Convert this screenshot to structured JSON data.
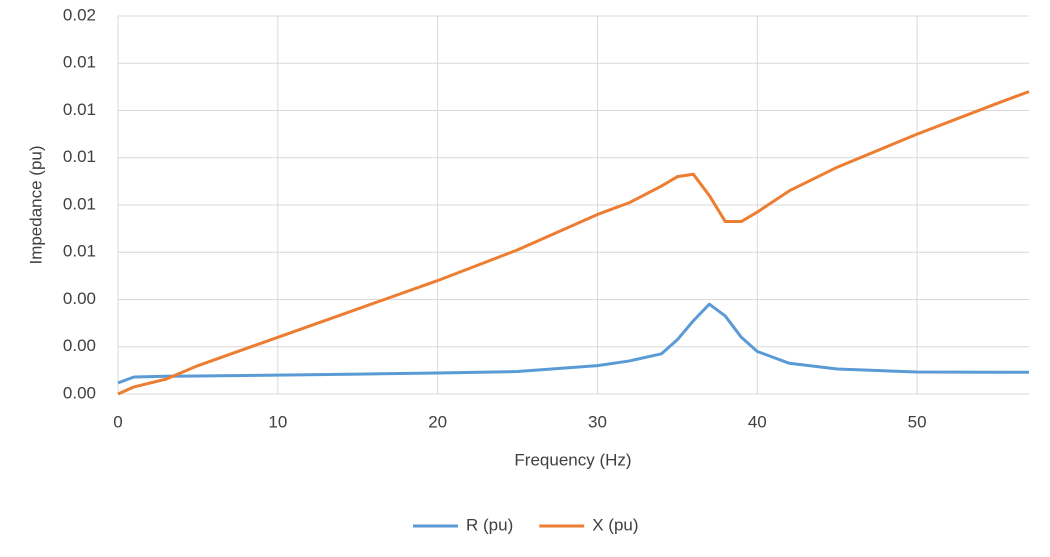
{
  "chart_data": {
    "type": "line",
    "x_label": "Frequency (Hz)",
    "y_label": "Impedance (pu)",
    "x": [
      0,
      1,
      3,
      5,
      10,
      15,
      20,
      25,
      30,
      32,
      34,
      35,
      36,
      37,
      38,
      39,
      40,
      42,
      45,
      50,
      55,
      57
    ],
    "series": [
      {
        "name": "R (pu)",
        "color": "#5b9bd5",
        "values": [
          0.00047,
          0.00072,
          0.00075,
          0.00076,
          0.0008,
          0.00084,
          0.00089,
          0.00095,
          0.0012,
          0.0014,
          0.0017,
          0.0023,
          0.0031,
          0.0038,
          0.0033,
          0.0024,
          0.0018,
          0.0013,
          0.00106,
          0.00093,
          0.00092,
          0.00092
        ]
      },
      {
        "name": "X (pu)",
        "color": "#ed7d31",
        "values": [
          0,
          0.0003,
          0.00063,
          0.0012,
          0.0024,
          0.0036,
          0.0048,
          0.0061,
          0.0076,
          0.0081,
          0.0088,
          0.0092,
          0.0093,
          0.0084,
          0.0073,
          0.0073,
          0.0077,
          0.0086,
          0.0096,
          0.011,
          0.0123,
          0.0128
        ]
      }
    ],
    "xlim": [
      0,
      57
    ],
    "xticks": [
      0,
      10,
      20,
      30,
      40,
      50
    ],
    "ylim": [
      0,
      0.016
    ],
    "yticks": [
      {
        "value": 0,
        "label": "0.00"
      },
      {
        "value": 0.002,
        "label": "0.00"
      },
      {
        "value": 0.004,
        "label": "0.00"
      },
      {
        "value": 0.006,
        "label": "0.01"
      },
      {
        "value": 0.008,
        "label": "0.01"
      },
      {
        "value": 0.01,
        "label": "0.01"
      },
      {
        "value": 0.012,
        "label": "0.01"
      },
      {
        "value": 0.014,
        "label": "0.01"
      },
      {
        "value": 0.016,
        "label": "0.02"
      }
    ],
    "grid": true,
    "legend": "bottom"
  }
}
